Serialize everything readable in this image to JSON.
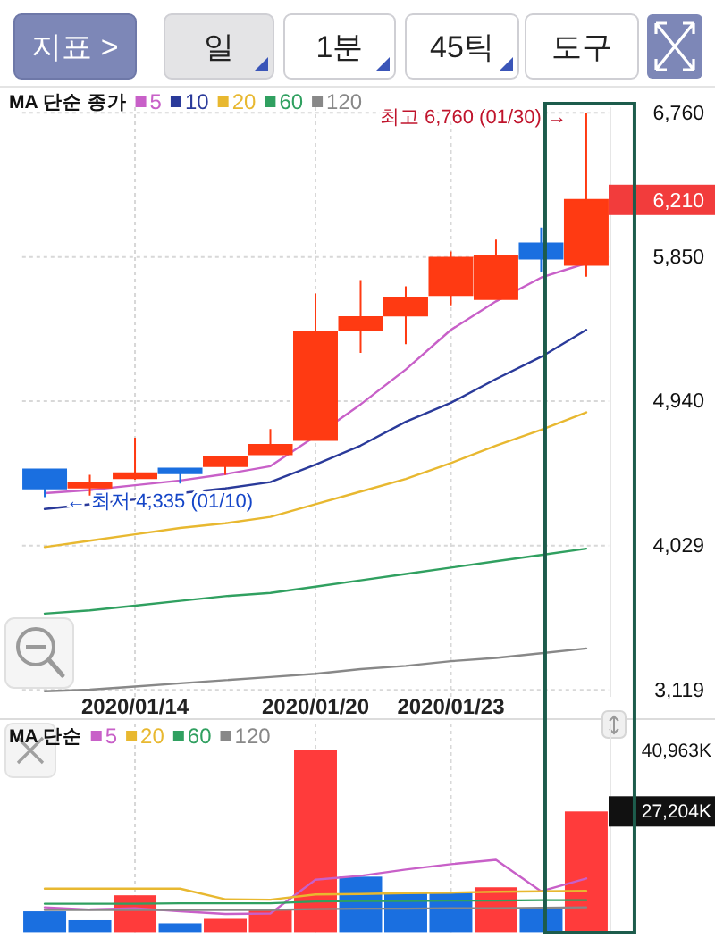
{
  "chart_data": [
    {
      "type": "other",
      "annotations": [
        "지표 >",
        "일",
        "1분",
        "45틱",
        "도구"
      ]
    },
    {
      "type": "candlestick",
      "categories": [
        null,
        null,
        "2020/01/14",
        null,
        null,
        null,
        "2020/01/20",
        null,
        null,
        "2020/01/23",
        null,
        null,
        null
      ],
      "ohlc": [
        [
          4510,
          4510,
          4335,
          4390
        ],
        [
          4395,
          4475,
          4345,
          4425
        ],
        [
          4455,
          4710,
          4445,
          4485
        ],
        [
          4515,
          4515,
          4420,
          4485
        ],
        [
          4530,
          4595,
          4475,
          4590
        ],
        [
          4605,
          4765,
          4605,
          4665
        ],
        [
          4695,
          5620,
          4695,
          5375
        ],
        [
          5390,
          5705,
          5245,
          5470
        ],
        [
          5480,
          5665,
          5300,
          5590
        ],
        [
          5610,
          5885,
          5545,
          5845
        ],
        [
          5585,
          5960,
          5585,
          5855
        ],
        [
          5935,
          6035,
          5755,
          5840
        ],
        [
          5800,
          6760,
          5725,
          6210
        ]
      ],
      "colors": [
        "#1a6fe0",
        "#ff3a12",
        "#ff3a12",
        "#1a6fe0",
        "#ff3a12",
        "#ff3a12",
        "#ff3a12",
        "#ff3a12",
        "#ff3a12",
        "#ff3a12",
        "#ff3a12",
        "#1a6fe0",
        "#ff3a12"
      ],
      "series": [
        {
          "name": "5",
          "type": "line",
          "color": "#c860c8",
          "values": [
            4360,
            4380,
            4410,
            4440,
            4480,
            4530,
            4720,
            4920,
            5140,
            5390,
            5570,
            5720,
            5810
          ]
        },
        {
          "name": "10",
          "type": "line",
          "color": "#2a3a9a",
          "values": [
            4260,
            4290,
            4320,
            4360,
            4390,
            4430,
            4540,
            4660,
            4810,
            4930,
            5080,
            5220,
            5390
          ]
        },
        {
          "name": "20",
          "type": "line",
          "color": "#e8b830",
          "values": [
            4020,
            4060,
            4100,
            4140,
            4170,
            4210,
            4290,
            4370,
            4450,
            4550,
            4660,
            4760,
            4870
          ]
        },
        {
          "name": "60",
          "type": "line",
          "color": "#30a060",
          "values": [
            3600,
            3620,
            3650,
            3680,
            3710,
            3730,
            3770,
            3810,
            3850,
            3890,
            3930,
            3970,
            4010
          ]
        },
        {
          "name": "120",
          "type": "line",
          "color": "#888888",
          "values": [
            3110,
            3120,
            3140,
            3160,
            3180,
            3200,
            3220,
            3250,
            3270,
            3300,
            3320,
            3350,
            3380
          ]
        }
      ],
      "ylim": [
        3075,
        6795
      ],
      "yticks": [
        {
          "value": 3119,
          "label": "3,119"
        },
        {
          "value": 4029,
          "label": "4,029"
        },
        {
          "value": 4940,
          "label": "4,940"
        },
        {
          "value": 5850,
          "label": "5,850"
        },
        {
          "value": 6760,
          "label": "6,760"
        }
      ],
      "grid": true,
      "legend": "top left",
      "legend_title": "MA 단순 종가",
      "annotations": [
        "최고 6,760 (01/30) →",
        "← 최저 4,335 (01/10)",
        "6,210"
      ]
    },
    {
      "type": "bar",
      "categories": [
        null,
        null,
        "2020/01/14",
        null,
        null,
        null,
        "2020/01/20",
        null,
        null,
        "2020/01/23",
        null,
        null,
        null
      ],
      "tick_labels": "y",
      "series": [
        {
          "colors": [
            "#1a6fe0",
            "#1a6fe0",
            "#ff3b3b",
            "#1a6fe0",
            "#ff3b3b",
            "#ff3b3b",
            "#ff3b3b",
            "#1a6fe0",
            "#1a6fe0",
            "#1a6fe0",
            "#ff3b3b",
            "#1a6fe0",
            "#ff3b3b"
          ],
          "values": [
            4700,
            2700,
            8300,
            2000,
            3000,
            5000,
            40963,
            12500,
            9000,
            8900,
            10100,
            5500,
            27204
          ]
        },
        {
          "name": "5",
          "type": "line",
          "color": "#c860c8",
          "values": [
            5600,
            5100,
            5400,
            4700,
            4100,
            4200,
            11800,
            12700,
            14100,
            15300,
            16300,
            9200,
            12100
          ]
        },
        {
          "name": "20",
          "type": "line",
          "color": "#e8b830",
          "values": [
            9800,
            9800,
            9800,
            9800,
            7400,
            7300,
            8500,
            8600,
            8800,
            8900,
            9100,
            9200,
            9300
          ]
        },
        {
          "name": "60",
          "type": "line",
          "color": "#30a060",
          "values": [
            6400,
            6400,
            6400,
            6500,
            6500,
            6500,
            6900,
            7000,
            7000,
            7100,
            7100,
            7200,
            7200
          ]
        },
        {
          "name": "120",
          "type": "line",
          "color": "#888888",
          "values": [
            5000,
            5000,
            5000,
            5000,
            5000,
            5000,
            5200,
            5300,
            5300,
            5400,
            5400,
            5500,
            5600
          ]
        }
      ],
      "ylim": [
        0,
        47000
      ],
      "yticks": [
        {
          "value": 27204,
          "label": "27,204K"
        },
        {
          "value": 40963,
          "label": "40,963K"
        }
      ],
      "grid": "x",
      "legend": "top left",
      "legend_title": "MA 단순"
    }
  ]
}
